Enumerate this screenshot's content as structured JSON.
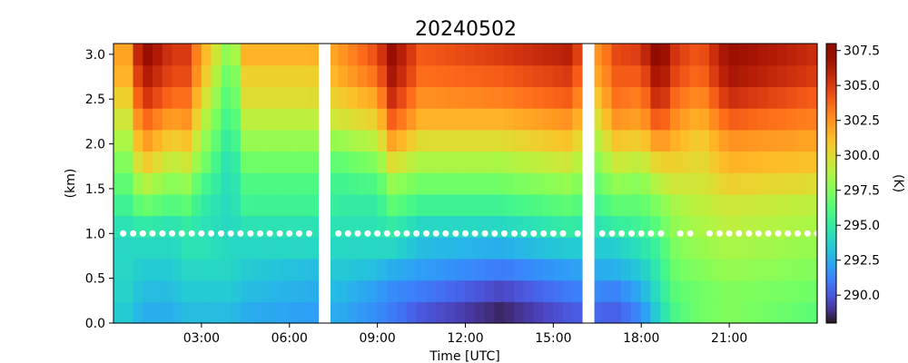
{
  "chart_data": {
    "type": "heatmap",
    "title": "20240502",
    "xlabel": "Time [UTC]",
    "ylabel": "(km)",
    "colorbar_label": "(K)",
    "colormap": "turbo",
    "x_unit": "hours UTC",
    "xlim": [
      0.0,
      24.0
    ],
    "ylim": [
      0.0,
      3.12
    ],
    "clim": [
      288.0,
      308.0
    ],
    "x_ticks": [
      3,
      6,
      9,
      12,
      15,
      18,
      21
    ],
    "x_tick_labels": [
      "03:00",
      "06:00",
      "09:00",
      "12:00",
      "15:00",
      "18:00",
      "21:00"
    ],
    "y_ticks": [
      0.0,
      0.5,
      1.0,
      1.5,
      2.0,
      2.5,
      3.0
    ],
    "y_tick_labels": [
      "0.0",
      "0.5",
      "1.0",
      "1.5",
      "2.0",
      "2.5",
      "3.0"
    ],
    "colorbar_ticks": [
      290.0,
      292.5,
      295.0,
      297.5,
      300.0,
      302.5,
      305.0,
      307.5
    ],
    "colorbar_tick_labels": [
      "290.0",
      "292.5",
      "295.0",
      "297.5",
      "300.0",
      "302.5",
      "305.0",
      "307.5"
    ],
    "time_bin_hours": 0.333,
    "data_gaps": [
      [
        7.0,
        7.4
      ],
      [
        16.0,
        16.4
      ]
    ],
    "heights_km": [
      0.0,
      0.24,
      0.48,
      0.72,
      0.96,
      1.2,
      1.44,
      1.68,
      1.92,
      2.16,
      2.4,
      2.64,
      2.88
    ],
    "profiles": [
      {
        "t": 0.5,
        "temps": [
          293.5,
          293.8,
          294.0,
          294.0,
          294.5,
          295.5,
          296.5,
          297.5,
          298.5,
          299.5,
          300.5,
          301.5,
          302.0
        ]
      },
      {
        "t": 1.0,
        "temps": [
          292.5,
          293.0,
          293.5,
          294.0,
          295.0,
          297.0,
          299.0,
          301.0,
          302.5,
          304.0,
          305.5,
          306.5,
          307.5
        ]
      },
      {
        "t": 2.0,
        "temps": [
          292.5,
          293.0,
          293.5,
          294.0,
          294.5,
          296.0,
          297.5,
          299.0,
          300.5,
          302.0,
          303.5,
          304.5,
          305.0
        ]
      },
      {
        "t": 2.5,
        "temps": [
          293.0,
          293.5,
          294.0,
          294.5,
          295.0,
          296.5,
          298.0,
          299.5,
          301.0,
          302.5,
          303.5,
          304.5,
          305.0
        ]
      },
      {
        "t": 3.0,
        "temps": [
          293.0,
          293.5,
          294.0,
          294.5,
          294.5,
          295.0,
          296.0,
          297.5,
          298.5,
          299.5,
          300.5,
          301.5,
          302.0
        ]
      },
      {
        "t": 4.0,
        "temps": [
          293.0,
          293.5,
          294.0,
          294.0,
          294.0,
          294.0,
          294.0,
          294.0,
          294.5,
          295.0,
          295.5,
          296.0,
          297.0
        ]
      },
      {
        "t": 4.5,
        "temps": [
          292.5,
          293.0,
          293.5,
          294.0,
          294.5,
          295.5,
          296.0,
          297.0,
          298.0,
          299.0,
          300.0,
          300.5,
          301.5
        ]
      },
      {
        "t": 6.8,
        "temps": [
          292.0,
          292.5,
          293.0,
          294.0,
          294.5,
          295.5,
          296.0,
          297.0,
          298.0,
          299.0,
          300.0,
          300.5,
          301.5
        ]
      },
      {
        "t": 7.6,
        "temps": [
          292.5,
          293.0,
          293.5,
          294.0,
          294.5,
          295.0,
          295.5,
          296.5,
          298.0,
          299.5,
          300.5,
          301.5,
          302.0
        ]
      },
      {
        "t": 9.0,
        "temps": [
          291.5,
          292.0,
          293.0,
          294.0,
          294.5,
          295.0,
          296.0,
          297.5,
          299.0,
          300.5,
          302.0,
          303.5,
          304.5
        ]
      },
      {
        "t": 9.5,
        "temps": [
          291.0,
          291.5,
          292.5,
          294.0,
          295.0,
          296.5,
          298.0,
          300.0,
          302.0,
          304.0,
          305.5,
          306.5,
          307.0
        ]
      },
      {
        "t": 10.5,
        "temps": [
          290.0,
          291.0,
          292.0,
          293.0,
          294.0,
          295.5,
          297.0,
          298.5,
          300.0,
          301.5,
          302.5,
          303.5,
          304.0
        ]
      },
      {
        "t": 13.2,
        "temps": [
          288.5,
          289.5,
          291.0,
          292.5,
          294.0,
          295.5,
          297.0,
          298.5,
          300.0,
          301.5,
          303.0,
          304.0,
          305.0
        ]
      },
      {
        "t": 15.5,
        "temps": [
          290.0,
          291.0,
          292.0,
          293.5,
          295.0,
          296.5,
          298.0,
          299.5,
          301.0,
          302.5,
          304.0,
          305.0,
          306.0
        ]
      },
      {
        "t": 16.6,
        "temps": [
          290.5,
          291.5,
          292.5,
          293.5,
          294.5,
          295.5,
          296.5,
          297.5,
          298.5,
          299.5,
          300.5,
          301.5,
          302.0
        ]
      },
      {
        "t": 17.0,
        "temps": [
          290.0,
          291.0,
          292.5,
          293.5,
          295.0,
          296.5,
          298.0,
          299.5,
          301.0,
          302.5,
          303.5,
          304.0,
          304.5
        ]
      },
      {
        "t": 18.0,
        "temps": [
          291.5,
          292.5,
          293.5,
          294.5,
          295.5,
          296.5,
          297.5,
          299.0,
          300.5,
          302.0,
          303.0,
          304.0,
          305.0
        ]
      },
      {
        "t": 18.6,
        "temps": [
          294.0,
          294.5,
          295.0,
          295.5,
          296.5,
          297.5,
          299.0,
          300.5,
          302.5,
          304.5,
          306.0,
          307.0,
          308.0
        ]
      },
      {
        "t": 19.2,
        "temps": [
          296.0,
          296.5,
          297.0,
          297.5,
          298.0,
          298.5,
          299.5,
          300.5,
          301.5,
          302.5,
          303.5,
          304.5,
          305.0
        ]
      },
      {
        "t": 20.0,
        "temps": [
          297.0,
          297.0,
          297.5,
          298.0,
          298.5,
          299.0,
          299.5,
          300.0,
          300.5,
          301.5,
          302.5,
          303.5,
          304.0
        ]
      },
      {
        "t": 21.0,
        "temps": [
          297.5,
          297.5,
          298.0,
          298.5,
          299.0,
          299.5,
          300.5,
          301.5,
          302.5,
          304.0,
          305.5,
          306.5,
          307.0
        ]
      },
      {
        "t": 23.8,
        "temps": [
          296.5,
          297.0,
          297.5,
          298.0,
          298.5,
          299.0,
          300.0,
          301.0,
          302.0,
          303.0,
          304.0,
          305.0,
          305.5
        ]
      }
    ],
    "marker_height_km": 1.0,
    "marker_color": "#ffffff",
    "marker_times": [
      0.33,
      0.67,
      1.0,
      1.33,
      1.67,
      2.0,
      2.33,
      2.67,
      3.0,
      3.33,
      3.67,
      4.0,
      4.33,
      4.67,
      5.0,
      5.33,
      5.67,
      6.0,
      6.33,
      6.67,
      7.67,
      8.0,
      8.33,
      8.67,
      9.0,
      9.33,
      9.67,
      10.0,
      10.33,
      10.67,
      11.0,
      11.33,
      11.67,
      12.0,
      12.33,
      12.67,
      13.0,
      13.33,
      13.67,
      14.0,
      14.33,
      14.67,
      15.0,
      15.33,
      15.83,
      16.67,
      17.0,
      17.33,
      17.67,
      18.0,
      18.33,
      18.67,
      19.33,
      19.67,
      20.33,
      20.67,
      21.0,
      21.33,
      21.67,
      22.0,
      22.33,
      22.67,
      23.0,
      23.33,
      23.67,
      24.0
    ]
  }
}
